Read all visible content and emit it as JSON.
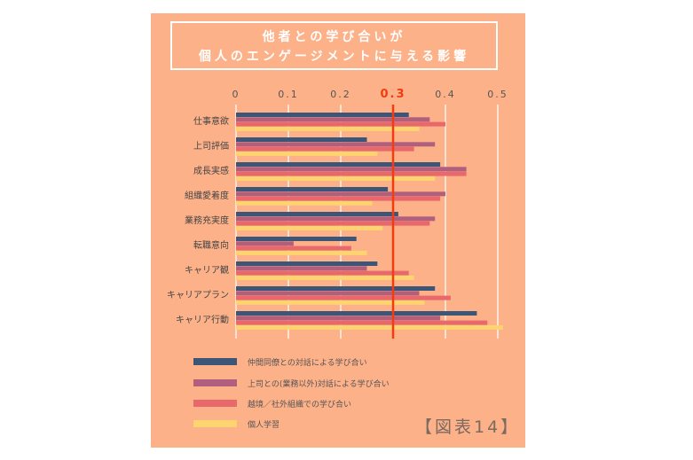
{
  "title_lines": [
    "他者との学び合いが",
    "個人のエンゲージメントに与える影響"
  ],
  "figure_label": "【図表14】",
  "chart_data": {
    "type": "bar",
    "orientation": "horizontal",
    "categories": [
      "仕事意欲",
      "上司評価",
      "成長実感",
      "組織愛着度",
      "業務充実度",
      "転職意向",
      "キャリア観",
      "キャリアプラン",
      "キャリア行動"
    ],
    "series": [
      {
        "name": "仲間同僚との対話による学び合い",
        "color": "#3d5577",
        "values": [
          0.33,
          0.25,
          0.39,
          0.29,
          0.31,
          0.23,
          0.27,
          0.38,
          0.46
        ]
      },
      {
        "name": "上司との(業務以外)対話による学び合い",
        "color": "#b0607c",
        "values": [
          0.37,
          0.38,
          0.44,
          0.4,
          0.38,
          0.11,
          0.25,
          0.35,
          0.39
        ]
      },
      {
        "name": "越境／社外組織での学び合い",
        "color": "#e8686c",
        "values": [
          0.4,
          0.34,
          0.44,
          0.39,
          0.37,
          0.22,
          0.33,
          0.41,
          0.48
        ]
      },
      {
        "name": "個人学習",
        "color": "#fed470",
        "values": [
          0.35,
          0.27,
          0.38,
          0.26,
          0.28,
          0.25,
          0.34,
          0.36,
          0.51
        ]
      }
    ],
    "x_ticks": [
      "0",
      "0.1",
      "0.2",
      "0.3",
      "0.4",
      "0.5"
    ],
    "xlim": [
      0,
      0.5
    ],
    "reference_line": {
      "value": 0.3,
      "label": "0.3",
      "color": "#f03c10"
    },
    "grid": true,
    "legend_position": "bottom-left",
    "axis_position": "top"
  }
}
